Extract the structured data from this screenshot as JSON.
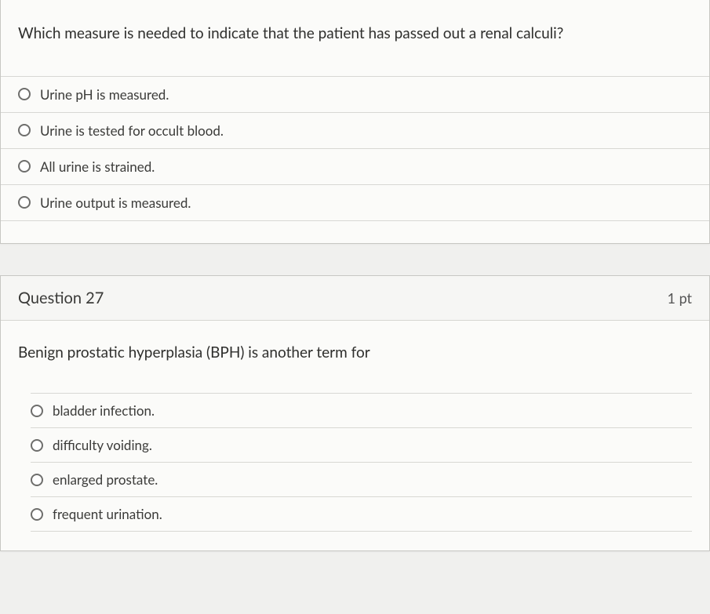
{
  "colors": {
    "page_bg": "#f0f0ee",
    "card_bg": "#fbfbf9",
    "border": "#c7c7c3",
    "divider": "#d8d8d4",
    "text_primary": "#2f2f2d",
    "text_secondary": "#555",
    "radio_border": "#6e6e6c"
  },
  "typography": {
    "question_text_size": 19,
    "option_text_size": 17,
    "header_title_size": 20,
    "points_size": 18
  },
  "questions": [
    {
      "id": "q26",
      "text": "Which measure is needed to indicate that the patient has passed out a renal calculi?",
      "options": [
        "Urine pH is measured.",
        "Urine is tested for occult blood.",
        "All urine is strained.",
        "Urine output is measured."
      ]
    },
    {
      "id": "q27",
      "header_title": "Question 27",
      "points": "1 pt",
      "text": "Benign prostatic hyperplasia (BPH) is another term for",
      "options": [
        "bladder infection.",
        "difficulty voiding.",
        "enlarged prostate.",
        "frequent urination."
      ]
    }
  ]
}
